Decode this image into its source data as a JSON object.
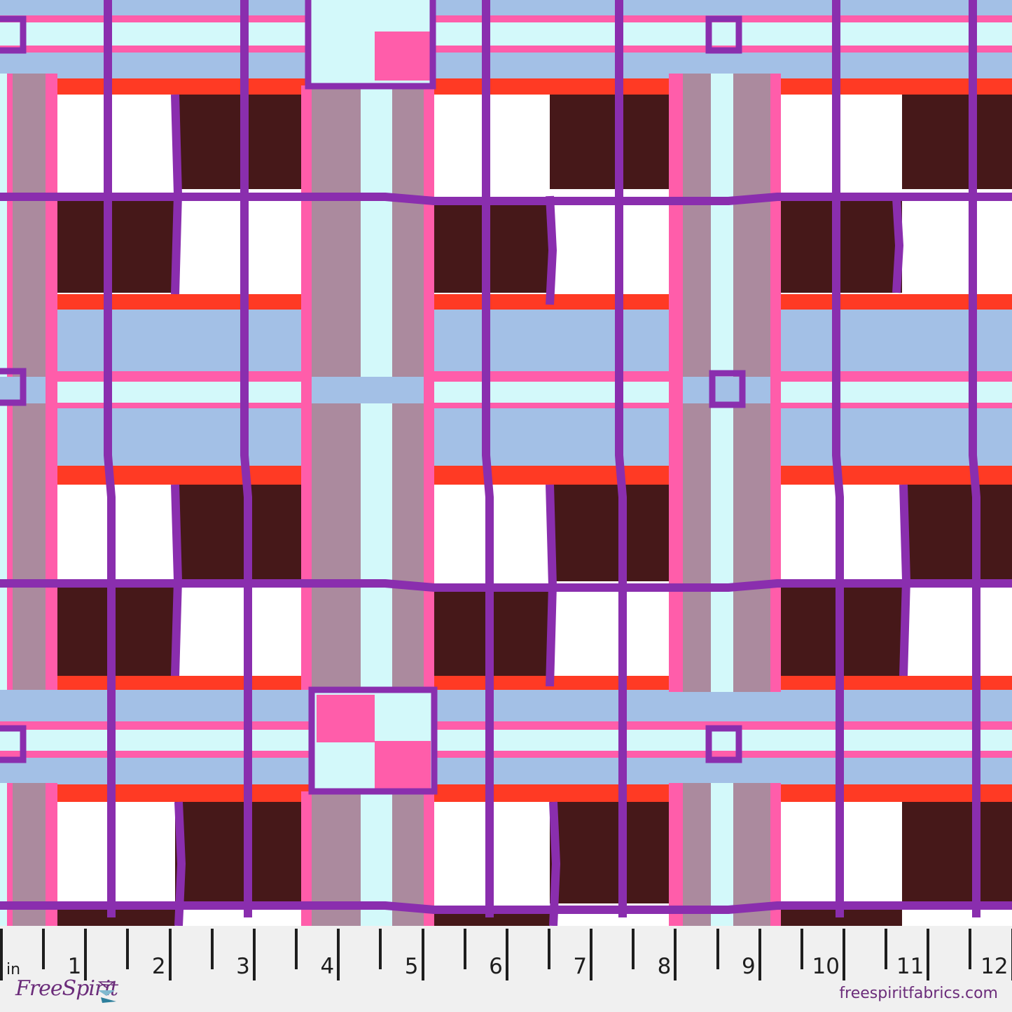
{
  "colors": {
    "lavender": "#A3C0E6",
    "cyan": "#D3F9FA",
    "pink": "#FF5DAA",
    "red": "#FF3A24",
    "dark": "#461819",
    "mauve": "#AB8A9E",
    "purple": "#8A2EAE",
    "white": "#FFFFFF",
    "ruler_bg": "#F0F0F0",
    "brand": "#6B2C7A"
  },
  "ruler": {
    "unit": "in",
    "labels": [
      "1",
      "2",
      "3",
      "4",
      "5",
      "6",
      "7",
      "8",
      "9",
      "10",
      "11",
      "12"
    ]
  },
  "brand": {
    "logo_text": "FreeSpirit",
    "url": "freespiritfabrics.com"
  }
}
